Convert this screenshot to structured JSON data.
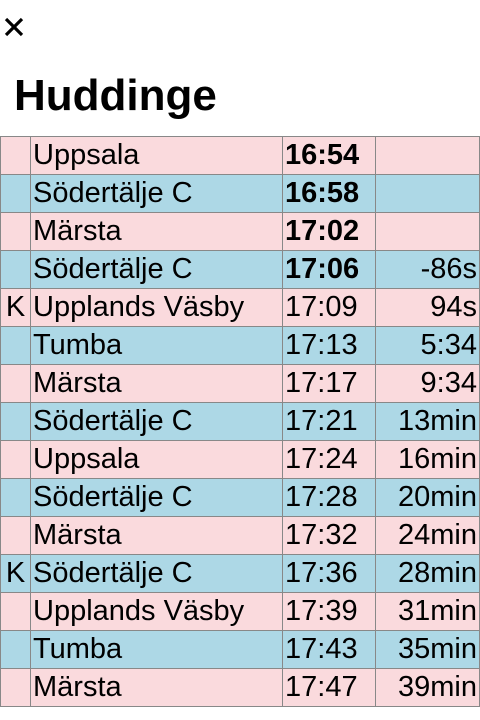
{
  "header": {
    "close_icon": "close-icon",
    "station": "Huddinge"
  },
  "colors": {
    "row_pink": "#fadadd",
    "row_blue": "#add8e6",
    "grid": "#888888"
  },
  "departures": [
    {
      "flag": "",
      "destination": "Uppsala",
      "time": "16:54",
      "countdown": "",
      "time_bold": true,
      "row_color": "pink"
    },
    {
      "flag": "",
      "destination": "Södertälje C",
      "time": "16:58",
      "countdown": "",
      "time_bold": true,
      "row_color": "blue"
    },
    {
      "flag": "",
      "destination": "Märsta",
      "time": "17:02",
      "countdown": "",
      "time_bold": true,
      "row_color": "pink"
    },
    {
      "flag": "",
      "destination": "Södertälje C",
      "time": "17:06",
      "countdown": "-86s",
      "time_bold": true,
      "row_color": "blue"
    },
    {
      "flag": "K",
      "destination": "Upplands Väsby",
      "time": "17:09",
      "countdown": "94s",
      "time_bold": false,
      "row_color": "pink"
    },
    {
      "flag": "",
      "destination": "Tumba",
      "time": "17:13",
      "countdown": "5:34",
      "time_bold": false,
      "row_color": "blue"
    },
    {
      "flag": "",
      "destination": "Märsta",
      "time": "17:17",
      "countdown": "9:34",
      "time_bold": false,
      "row_color": "pink"
    },
    {
      "flag": "",
      "destination": "Södertälje C",
      "time": "17:21",
      "countdown": "13min",
      "time_bold": false,
      "row_color": "blue"
    },
    {
      "flag": "",
      "destination": "Uppsala",
      "time": "17:24",
      "countdown": "16min",
      "time_bold": false,
      "row_color": "pink"
    },
    {
      "flag": "",
      "destination": "Södertälje C",
      "time": "17:28",
      "countdown": "20min",
      "time_bold": false,
      "row_color": "blue"
    },
    {
      "flag": "",
      "destination": "Märsta",
      "time": "17:32",
      "countdown": "24min",
      "time_bold": false,
      "row_color": "pink"
    },
    {
      "flag": "K",
      "destination": "Södertälje C",
      "time": "17:36",
      "countdown": "28min",
      "time_bold": false,
      "row_color": "blue"
    },
    {
      "flag": "",
      "destination": "Upplands Väsby",
      "time": "17:39",
      "countdown": "31min",
      "time_bold": false,
      "row_color": "pink"
    },
    {
      "flag": "",
      "destination": "Tumba",
      "time": "17:43",
      "countdown": "35min",
      "time_bold": false,
      "row_color": "blue"
    },
    {
      "flag": "",
      "destination": "Märsta",
      "time": "17:47",
      "countdown": "39min",
      "time_bold": false,
      "row_color": "pink"
    }
  ]
}
